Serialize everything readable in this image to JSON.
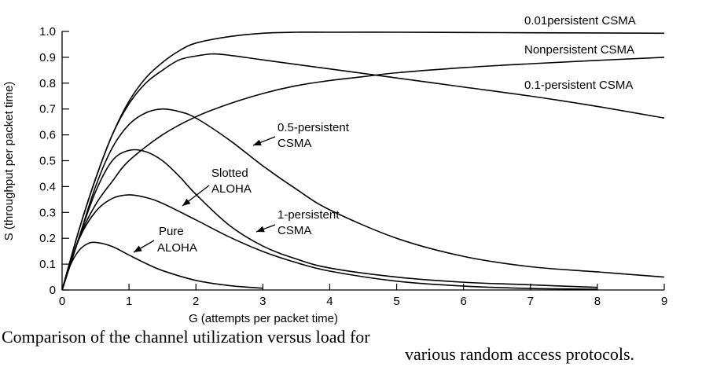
{
  "chart_data": {
    "type": "line",
    "title": "",
    "xlabel": "G (attempts per packet time)",
    "ylabel": "S (throughput per packet time)",
    "xlim": [
      0,
      9
    ],
    "ylim": [
      0,
      1.0
    ],
    "x_ticks": [
      "0",
      "1",
      "2",
      "3",
      "4",
      "5",
      "6",
      "7",
      "8",
      "9"
    ],
    "y_ticks": [
      "0",
      "0.1",
      "0.2",
      "0.3",
      "0.4",
      "0.5",
      "0.6",
      "0.7",
      "0.8",
      "0.9",
      "1.0"
    ],
    "grid": false,
    "series": [
      {
        "name": "0.01persistent CSMA",
        "x": [
          0,
          0.25,
          0.5,
          0.75,
          1,
          1.25,
          1.5,
          1.75,
          2,
          2.5,
          3,
          3.5,
          4,
          5,
          6,
          7,
          8,
          9
        ],
        "y": [
          0,
          0.23,
          0.43,
          0.6,
          0.73,
          0.82,
          0.88,
          0.925,
          0.955,
          0.98,
          0.993,
          0.997,
          0.997,
          0.997,
          0.996,
          0.995,
          0.994,
          0.993
        ]
      },
      {
        "name": "Nonpersistent CSMA",
        "x": [
          0,
          0.25,
          0.5,
          0.75,
          1,
          1.5,
          2,
          2.5,
          3,
          3.5,
          4,
          4.5,
          5,
          6,
          7,
          8,
          9
        ],
        "y": [
          0,
          0.2,
          0.33,
          0.42,
          0.5,
          0.6,
          0.67,
          0.72,
          0.76,
          0.79,
          0.81,
          0.825,
          0.84,
          0.86,
          0.875,
          0.888,
          0.9
        ]
      },
      {
        "name": "0.1-persistent CSMA",
        "x": [
          0,
          0.25,
          0.5,
          0.75,
          1,
          1.25,
          1.5,
          1.75,
          2,
          2.25,
          2.5,
          3,
          4,
          5,
          6,
          7,
          8,
          9
        ],
        "y": [
          0,
          0.23,
          0.43,
          0.6,
          0.72,
          0.8,
          0.85,
          0.89,
          0.905,
          0.913,
          0.908,
          0.89,
          0.855,
          0.82,
          0.785,
          0.75,
          0.71,
          0.665
        ]
      },
      {
        "name": "0.5-persistent CSMA",
        "x": [
          0,
          0.25,
          0.5,
          0.75,
          1,
          1.25,
          1.5,
          1.75,
          2,
          2.5,
          3,
          3.5,
          4,
          5,
          6,
          7,
          8,
          9
        ],
        "y": [
          0,
          0.2,
          0.4,
          0.55,
          0.64,
          0.685,
          0.7,
          0.69,
          0.665,
          0.58,
          0.48,
          0.39,
          0.31,
          0.2,
          0.13,
          0.09,
          0.07,
          0.05
        ]
      },
      {
        "name": "1-persistent CSMA",
        "x": [
          0,
          0.25,
          0.5,
          0.75,
          1,
          1.25,
          1.5,
          1.75,
          2,
          2.5,
          3,
          3.5,
          4,
          5,
          6,
          7,
          8
        ],
        "y": [
          0,
          0.2,
          0.38,
          0.5,
          0.54,
          0.535,
          0.5,
          0.44,
          0.37,
          0.25,
          0.17,
          0.12,
          0.085,
          0.05,
          0.03,
          0.02,
          0.01
        ]
      },
      {
        "name": "Slotted ALOHA",
        "x": [
          0,
          0.25,
          0.5,
          0.75,
          1,
          1.25,
          1.5,
          2,
          2.5,
          3,
          3.5,
          4,
          5,
          6,
          7,
          8
        ],
        "y": [
          0,
          0.195,
          0.303,
          0.354,
          0.368,
          0.358,
          0.335,
          0.271,
          0.205,
          0.149,
          0.106,
          0.073,
          0.034,
          0.015,
          0.006,
          0.003
        ]
      },
      {
        "name": "Pure ALOHA",
        "x": [
          0,
          0.125,
          0.25,
          0.375,
          0.5,
          0.75,
          1,
          1.25,
          1.5,
          2,
          2.5,
          3
        ],
        "y": [
          0,
          0.097,
          0.152,
          0.178,
          0.184,
          0.168,
          0.135,
          0.103,
          0.075,
          0.037,
          0.017,
          0.007
        ]
      }
    ],
    "labels": [
      {
        "text": "0.01persistent CSMA"
      },
      {
        "text": "Nonpersistent CSMA"
      },
      {
        "text": "0.1-persistent CSMA"
      },
      {
        "text": "0.5-persistent"
      },
      {
        "text": "CSMA"
      },
      {
        "text": "Slotted"
      },
      {
        "text": "ALOHA"
      },
      {
        "text": "1-persistent"
      },
      {
        "text": "CSMA"
      },
      {
        "text": "Pure"
      },
      {
        "text": "ALOHA"
      }
    ]
  },
  "caption": {
    "line1": "Comparison of the channel utilization versus load for",
    "line2": "various random access protocols."
  }
}
